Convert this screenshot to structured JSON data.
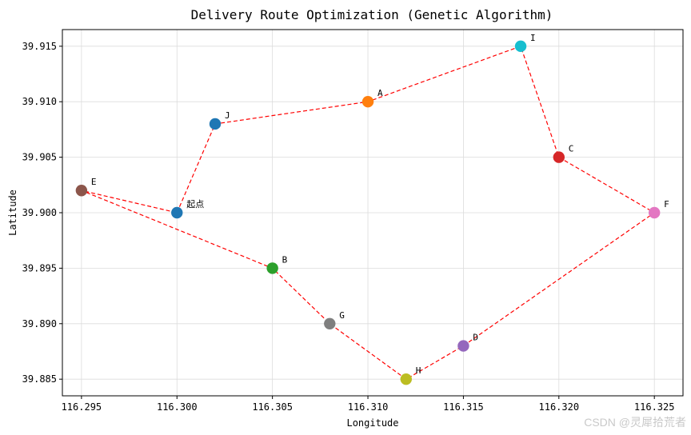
{
  "chart_data": {
    "type": "scatter",
    "title": "Delivery Route Optimization (Genetic Algorithm)",
    "xlabel": "Longitude",
    "ylabel": "Latitude",
    "xlim": [
      116.294,
      116.3265
    ],
    "ylim": [
      39.8835,
      39.9165
    ],
    "xticks": [
      "116.295",
      "116.300",
      "116.305",
      "116.310",
      "116.315",
      "116.320",
      "116.325"
    ],
    "yticks": [
      "39.885",
      "39.890",
      "39.895",
      "39.900",
      "39.905",
      "39.910",
      "39.915"
    ],
    "grid": true,
    "points": [
      {
        "label": "起点",
        "x": 116.3,
        "y": 39.9,
        "color": "#1f77b4"
      },
      {
        "label": "A",
        "x": 116.31,
        "y": 39.91,
        "color": "#ff7f0e"
      },
      {
        "label": "B",
        "x": 116.305,
        "y": 39.895,
        "color": "#2ca02c"
      },
      {
        "label": "C",
        "x": 116.32,
        "y": 39.905,
        "color": "#d62728"
      },
      {
        "label": "D",
        "x": 116.315,
        "y": 39.888,
        "color": "#9467bd"
      },
      {
        "label": "E",
        "x": 116.295,
        "y": 39.902,
        "color": "#8c564b"
      },
      {
        "label": "F",
        "x": 116.325,
        "y": 39.9,
        "color": "#e377c2"
      },
      {
        "label": "G",
        "x": 116.308,
        "y": 39.89,
        "color": "#7f7f7f"
      },
      {
        "label": "H",
        "x": 116.312,
        "y": 39.885,
        "color": "#bcbd22"
      },
      {
        "label": "I",
        "x": 116.318,
        "y": 39.915,
        "color": "#17becf"
      },
      {
        "label": "J",
        "x": 116.302,
        "y": 39.908,
        "color": "#1f77b4"
      }
    ],
    "route": [
      "起点",
      "J",
      "A",
      "I",
      "C",
      "F",
      "D",
      "H",
      "G",
      "B",
      "E",
      "起点"
    ],
    "route_color": "#ff0000"
  },
  "watermark": "CSDN @灵犀拾荒者"
}
